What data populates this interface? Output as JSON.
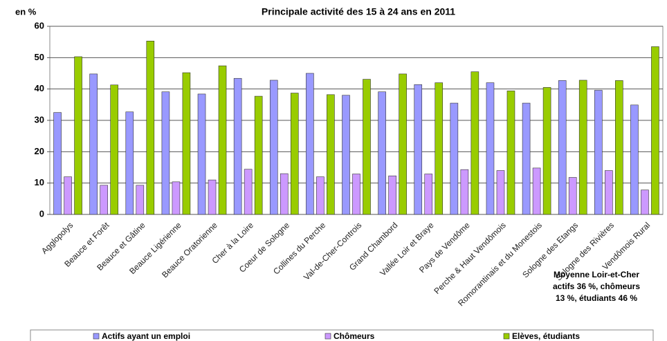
{
  "chart_data": {
    "type": "bar",
    "title": "Principale activité des 15 à 24 ans en 2011",
    "y_label": "en %",
    "categories": [
      "Agglopolys",
      "Beauce et Forêt",
      "Beauce et Gâtine",
      "Beauce Ligérienne",
      "Beauce Oratorienne",
      "Cher à la Loire",
      "Coeur de Sologne",
      "Collines du Perche",
      "Val-de-Cher-Controis",
      "Grand Chambord",
      "Vallée Loir et Braye",
      "Pays de Vendôme",
      "Perche & Haut Vendômois",
      "Romorantinais et du Monestois",
      "Sologne des Etangs",
      "Sologne des Rivières",
      "Vendômois Rural"
    ],
    "series": [
      {
        "name": "Actifs ayant un emploi",
        "color": "#9999ff",
        "values": [
          32.5,
          44.8,
          32.7,
          39.1,
          38.4,
          43.4,
          42.8,
          45,
          38,
          39.1,
          41.4,
          35.5,
          42,
          35.5,
          42.7,
          39.6,
          34.9
        ]
      },
      {
        "name": "Chômeurs",
        "color": "#cc99ff",
        "values": [
          12,
          9.3,
          9.3,
          10.4,
          11,
          14.4,
          13,
          12,
          12.9,
          12.3,
          12.9,
          14.3,
          14,
          14.8,
          11.8,
          14,
          7.8
        ]
      },
      {
        "name": "Elèves, étudiants",
        "color": "#99cc00",
        "values": [
          50.3,
          41.3,
          55.3,
          45.2,
          47.4,
          37.7,
          38.7,
          38.2,
          43.1,
          44.8,
          42,
          45.5,
          39.4,
          40.5,
          42.8,
          42.7,
          53.5
        ]
      }
    ],
    "ylim": [
      0,
      60
    ],
    "yticks": [
      0,
      10,
      20,
      30,
      40,
      50,
      60
    ],
    "grid": true,
    "annotation": [
      "Moyenne Loir-et-Cher",
      "actifs 36 %, chômeurs",
      "13 %, étudiants 46 %"
    ]
  }
}
